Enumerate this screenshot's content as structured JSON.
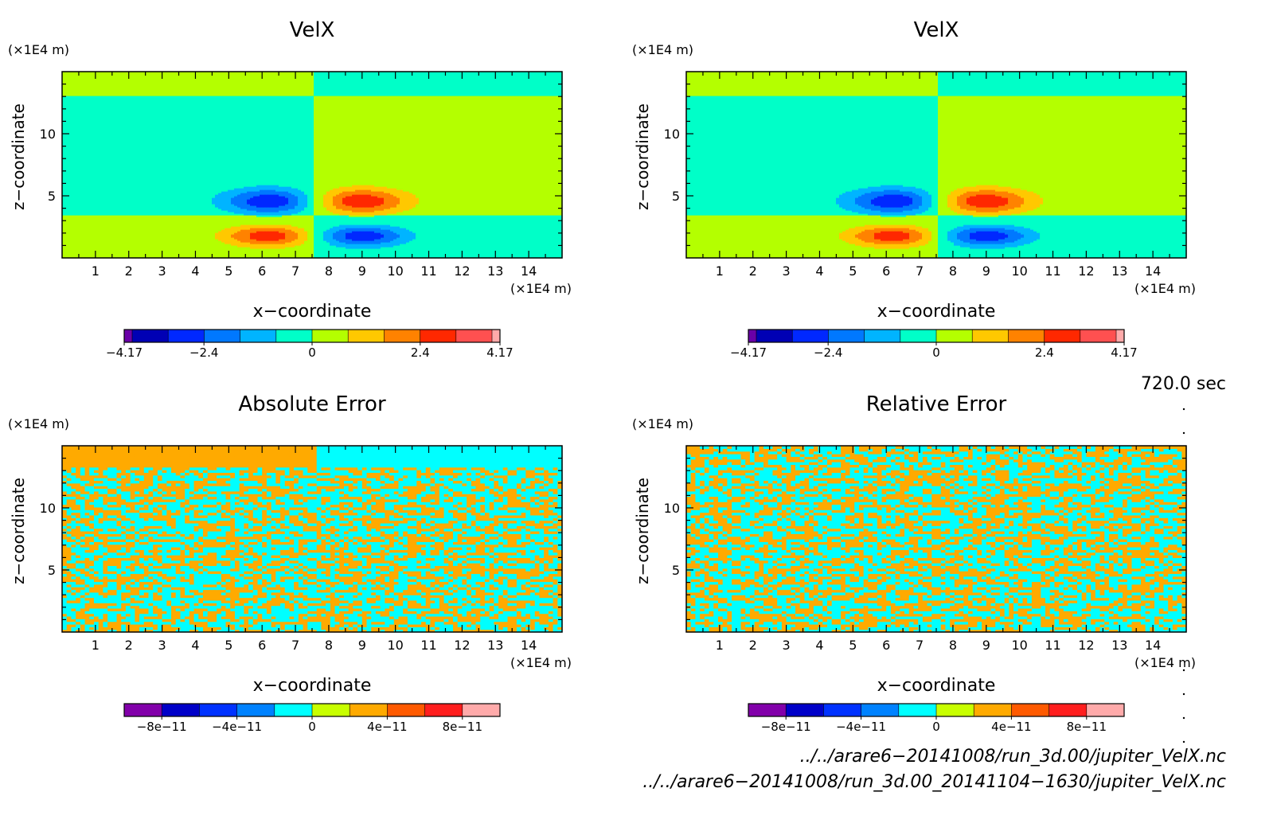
{
  "chart_data": [
    {
      "type": "heatmap",
      "title": "VelX",
      "xlabel": "x−coordinate",
      "ylabel": "z−coordinate",
      "x_unit": "(×1E4 m)",
      "y_unit": "(×1E4 m)",
      "xlim": [
        0,
        15
      ],
      "ylim": [
        0,
        15
      ],
      "x_ticks": [
        "1",
        "2",
        "3",
        "4",
        "5",
        "6",
        "7",
        "8",
        "9",
        "10",
        "11",
        "12",
        "13",
        "14"
      ],
      "y_ticks": [
        "5",
        "10"
      ],
      "field": "dipole_velx",
      "colorbar": {
        "tick_labels": [
          "−4.17",
          "−2.4",
          "0",
          "2.4",
          "4.17"
        ],
        "tick_values": [
          -4.17,
          -2.4,
          0,
          2.4,
          4.17
        ],
        "range": [
          -4.17,
          4.17
        ],
        "levels": [
          -4.17,
          -3.8,
          -3.0,
          -2.0,
          -1.0,
          0.0,
          1.0,
          2.0,
          3.0,
          3.8,
          4.17
        ],
        "colors": [
          "#6a00a8",
          "#0000b4",
          "#0028ff",
          "#0078ff",
          "#00b4ff",
          "#00ffc8",
          "#b4ff00",
          "#ffc800",
          "#ff8200",
          "#ff2800",
          "#ff5050",
          "#ffaaaa"
        ]
      }
    },
    {
      "type": "heatmap",
      "title": "VelX",
      "xlabel": "x−coordinate",
      "ylabel": "z−coordinate",
      "x_unit": "(×1E4 m)",
      "y_unit": "(×1E4 m)",
      "xlim": [
        0,
        15
      ],
      "ylim": [
        0,
        15
      ],
      "x_ticks": [
        "1",
        "2",
        "3",
        "4",
        "5",
        "6",
        "7",
        "8",
        "9",
        "10",
        "11",
        "12",
        "13",
        "14"
      ],
      "y_ticks": [
        "5",
        "10"
      ],
      "field": "dipole_velx",
      "colorbar": {
        "tick_labels": [
          "−4.17",
          "−2.4",
          "0",
          "2.4",
          "4.17"
        ],
        "tick_values": [
          -4.17,
          -2.4,
          0,
          2.4,
          4.17
        ],
        "range": [
          -4.17,
          4.17
        ],
        "levels": [
          -4.17,
          -3.8,
          -3.0,
          -2.0,
          -1.0,
          0.0,
          1.0,
          2.0,
          3.0,
          3.8,
          4.17
        ],
        "colors": [
          "#6a00a8",
          "#0000b4",
          "#0028ff",
          "#0078ff",
          "#00b4ff",
          "#00ffc8",
          "#b4ff00",
          "#ffc800",
          "#ff8200",
          "#ff2800",
          "#ff5050",
          "#ffaaaa"
        ]
      }
    },
    {
      "type": "heatmap",
      "title": "Absolute Error",
      "xlabel": "x−coordinate",
      "ylabel": "z−coordinate",
      "x_unit": "(×1E4 m)",
      "y_unit": "(×1E4 m)",
      "xlim": [
        0,
        15
      ],
      "ylim": [
        0,
        15
      ],
      "x_ticks": [
        "1",
        "2",
        "3",
        "4",
        "5",
        "6",
        "7",
        "8",
        "9",
        "10",
        "11",
        "12",
        "13",
        "14"
      ],
      "y_ticks": [
        "5",
        "10"
      ],
      "field": "noise_absolute",
      "colorbar": {
        "tick_labels": [
          "−8e−11",
          "−4e−11",
          "0",
          "4e−11",
          "8e−11"
        ],
        "tick_values": [
          -8e-11,
          -4e-11,
          0,
          4e-11,
          8e-11
        ],
        "range": [
          -1e-10,
          1e-10
        ],
        "colors": [
          "#8200aa",
          "#0000c8",
          "#0032ff",
          "#0082ff",
          "#00ffff",
          "#c8ff00",
          "#ffaa00",
          "#ff5a00",
          "#ff1e1e",
          "#ffaaaa"
        ]
      }
    },
    {
      "type": "heatmap",
      "title": "Relative Error",
      "xlabel": "x−coordinate",
      "ylabel": "z−coordinate",
      "x_unit": "(×1E4 m)",
      "y_unit": "(×1E4 m)",
      "xlim": [
        0,
        15
      ],
      "ylim": [
        0,
        15
      ],
      "x_ticks": [
        "1",
        "2",
        "3",
        "4",
        "5",
        "6",
        "7",
        "8",
        "9",
        "10",
        "11",
        "12",
        "13",
        "14"
      ],
      "y_ticks": [
        "5",
        "10"
      ],
      "field": "noise_relative",
      "colorbar": {
        "tick_labels": [
          "−8e−11",
          "−4e−11",
          "0",
          "4e−11",
          "8e−11"
        ],
        "tick_values": [
          -8e-11,
          -4e-11,
          0,
          4e-11,
          8e-11
        ],
        "range": [
          -1e-10,
          1e-10
        ],
        "colors": [
          "#8200aa",
          "#0000c8",
          "#0032ff",
          "#0082ff",
          "#00ffff",
          "#c8ff00",
          "#ffaa00",
          "#ff5a00",
          "#ff1e1e",
          "#ffaaaa"
        ]
      }
    }
  ],
  "time_label": "720.0 sec",
  "files": [
    "../../arare6−20141008/run_3d.00/jupiter_VelX.nc",
    "../../arare6−20141008/run_3d.00_20141104−1630/jupiter_VelX.nc"
  ]
}
